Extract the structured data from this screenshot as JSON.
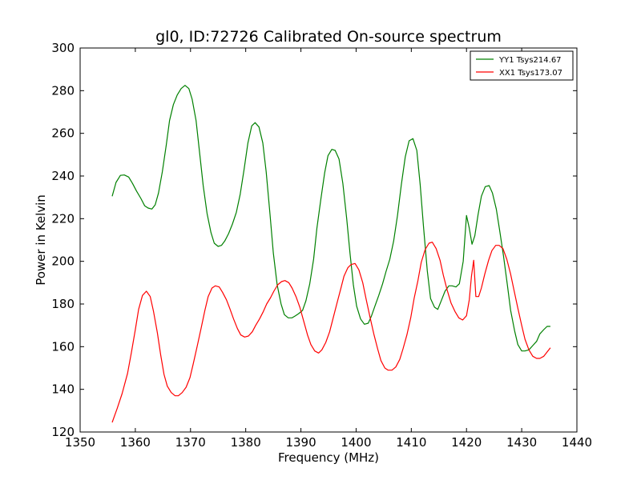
{
  "chart_data": {
    "type": "line",
    "title": "gl0, ID:72726 Calibrated On-source spectrum",
    "xlabel": "Frequency (MHz)",
    "ylabel": "Power in Kelvin",
    "xlim": [
      1350,
      1440
    ],
    "ylim": [
      120,
      300
    ],
    "xticks": [
      1350,
      1360,
      1370,
      1380,
      1390,
      1400,
      1410,
      1420,
      1430,
      1440
    ],
    "yticks": [
      120,
      140,
      160,
      180,
      200,
      220,
      240,
      260,
      280,
      300
    ],
    "grid": false,
    "legend_position": "top-right",
    "series": [
      {
        "name": "YY1 Tsys214.67",
        "color": "#008000",
        "x": [
          1355.8,
          1356.5,
          1357.3,
          1358.0,
          1358.8,
          1359.5,
          1360.2,
          1361.0,
          1361.7,
          1362.3,
          1363.0,
          1363.6,
          1364.2,
          1364.9,
          1365.6,
          1366.2,
          1366.9,
          1367.6,
          1368.3,
          1369.0,
          1369.7,
          1370.3,
          1371.0,
          1371.6,
          1372.3,
          1373.0,
          1373.7,
          1374.3,
          1375.0,
          1375.6,
          1376.2,
          1376.9,
          1377.6,
          1378.3,
          1379.0,
          1379.7,
          1380.4,
          1381.1,
          1381.7,
          1382.4,
          1383.1,
          1383.7,
          1384.4,
          1385.0,
          1385.7,
          1386.4,
          1387.0,
          1387.7,
          1388.4,
          1389.0,
          1389.6,
          1390.3,
          1390.9,
          1391.6,
          1392.3,
          1392.9,
          1393.6,
          1394.3,
          1394.9,
          1395.6,
          1396.2,
          1396.9,
          1397.6,
          1398.3,
          1398.9,
          1399.5,
          1400.1,
          1400.8,
          1401.5,
          1402.2,
          1402.8,
          1403.4,
          1404.1,
          1404.8,
          1405.4,
          1406.1,
          1406.8,
          1407.5,
          1408.2,
          1408.9,
          1409.6,
          1410.3,
          1411.0,
          1411.6,
          1412.2,
          1412.9,
          1413.5,
          1414.2,
          1414.8,
          1415.5,
          1416.1,
          1416.8,
          1417.4,
          1418.1,
          1418.7,
          1419.4,
          1420.0,
          1420.5,
          1421.0,
          1421.5,
          1422.1,
          1422.7,
          1423.4,
          1424.1,
          1424.7,
          1425.4,
          1426.0,
          1426.7,
          1427.4,
          1428.0,
          1428.7,
          1429.3,
          1430.0,
          1430.6,
          1431.3,
          1432.0,
          1432.7,
          1433.3,
          1434.0,
          1434.6,
          1435.2
        ],
        "values": [
          230.5,
          237.0,
          240.3,
          240.5,
          239.5,
          236.5,
          233.0,
          229.5,
          226.0,
          225.0,
          224.5,
          226.5,
          232.0,
          242.0,
          254.5,
          266.0,
          273.5,
          278.0,
          281.0,
          282.5,
          281.0,
          276.0,
          266.0,
          252.0,
          235.5,
          222.5,
          213.5,
          208.5,
          207.0,
          207.5,
          209.5,
          213.0,
          217.5,
          223.0,
          231.5,
          243.0,
          255.5,
          263.5,
          265.0,
          263.0,
          255.5,
          242.0,
          222.0,
          204.0,
          189.0,
          180.0,
          175.0,
          173.5,
          173.5,
          174.5,
          175.5,
          177.0,
          181.5,
          189.5,
          201.0,
          215.5,
          229.0,
          241.5,
          249.5,
          252.5,
          252.0,
          248.0,
          236.5,
          220.0,
          203.5,
          189.0,
          179.0,
          173.0,
          170.5,
          171.0,
          174.5,
          179.0,
          184.0,
          189.5,
          195.0,
          201.0,
          209.5,
          221.5,
          236.0,
          249.0,
          256.5,
          257.5,
          252.0,
          236.0,
          216.5,
          195.5,
          182.5,
          178.5,
          177.5,
          182.0,
          186.0,
          188.5,
          188.5,
          188.0,
          189.5,
          200.0,
          221.5,
          215.5,
          208.0,
          212.0,
          222.0,
          230.5,
          235.0,
          235.5,
          232.0,
          224.5,
          214.5,
          202.5,
          189.0,
          177.0,
          167.5,
          161.0,
          158.0,
          158.0,
          158.5,
          160.5,
          162.5,
          166.0,
          168.0,
          169.5,
          169.5
        ]
      },
      {
        "name": "XX1 Tsys173.07",
        "color": "#ff0000",
        "x": [
          1355.8,
          1356.7,
          1357.6,
          1358.6,
          1359.3,
          1360.0,
          1360.6,
          1361.3,
          1362.0,
          1362.7,
          1363.3,
          1364.0,
          1364.6,
          1365.2,
          1365.8,
          1366.5,
          1367.2,
          1367.8,
          1368.5,
          1369.2,
          1369.9,
          1370.5,
          1371.2,
          1371.9,
          1372.6,
          1373.2,
          1373.9,
          1374.5,
          1375.2,
          1375.8,
          1376.5,
          1377.1,
          1377.8,
          1378.5,
          1379.1,
          1379.8,
          1380.5,
          1381.2,
          1381.8,
          1382.5,
          1383.2,
          1383.8,
          1384.5,
          1385.1,
          1385.8,
          1386.5,
          1387.1,
          1387.8,
          1388.4,
          1389.1,
          1389.8,
          1390.5,
          1391.2,
          1391.8,
          1392.5,
          1393.2,
          1393.8,
          1394.5,
          1395.2,
          1395.8,
          1396.5,
          1397.2,
          1397.8,
          1398.5,
          1399.1,
          1399.8,
          1400.5,
          1401.2,
          1401.8,
          1402.5,
          1403.2,
          1403.9,
          1404.5,
          1405.2,
          1405.8,
          1406.5,
          1407.2,
          1407.9,
          1408.5,
          1409.2,
          1409.9,
          1410.5,
          1411.2,
          1411.8,
          1412.5,
          1413.2,
          1413.8,
          1414.5,
          1415.2,
          1415.8,
          1416.5,
          1417.2,
          1417.9,
          1418.6,
          1419.3,
          1420.0,
          1420.5,
          1420.9,
          1421.3,
          1421.7,
          1422.2,
          1422.7,
          1423.3,
          1424.0,
          1424.6,
          1425.3,
          1425.9,
          1426.6,
          1427.3,
          1428.0,
          1428.6,
          1429.3,
          1430.0,
          1430.6,
          1431.3,
          1432.0,
          1432.7,
          1433.3,
          1434.0,
          1434.6,
          1435.2
        ],
        "values": [
          124.5,
          131.0,
          138.0,
          147.5,
          157.5,
          168.0,
          177.5,
          184.0,
          186.0,
          183.5,
          176.5,
          166.5,
          156.0,
          147.0,
          141.5,
          138.5,
          137.0,
          137.0,
          138.5,
          141.0,
          145.5,
          152.0,
          160.0,
          168.5,
          177.0,
          183.5,
          187.5,
          188.5,
          188.0,
          185.5,
          182.0,
          178.0,
          173.0,
          168.5,
          165.5,
          164.5,
          165.0,
          167.0,
          170.0,
          173.0,
          176.5,
          180.0,
          183.0,
          186.0,
          189.0,
          190.5,
          191.0,
          190.0,
          187.5,
          183.5,
          178.5,
          172.0,
          165.5,
          161.0,
          158.0,
          157.0,
          158.5,
          162.0,
          167.0,
          173.0,
          180.0,
          187.0,
          193.0,
          197.0,
          198.5,
          199.0,
          196.0,
          190.0,
          182.5,
          174.0,
          166.0,
          159.0,
          153.5,
          150.0,
          149.0,
          149.0,
          150.5,
          154.0,
          159.0,
          165.5,
          173.5,
          182.5,
          191.0,
          199.5,
          205.5,
          208.5,
          209.0,
          206.0,
          200.5,
          193.5,
          186.5,
          180.5,
          176.5,
          173.5,
          172.5,
          174.5,
          182.0,
          193.0,
          200.5,
          183.5,
          183.5,
          187.5,
          194.0,
          200.5,
          205.0,
          207.5,
          207.5,
          206.0,
          201.0,
          194.0,
          186.5,
          178.0,
          170.0,
          163.5,
          158.5,
          155.5,
          154.5,
          154.5,
          155.5,
          157.5,
          159.5
        ]
      }
    ]
  }
}
